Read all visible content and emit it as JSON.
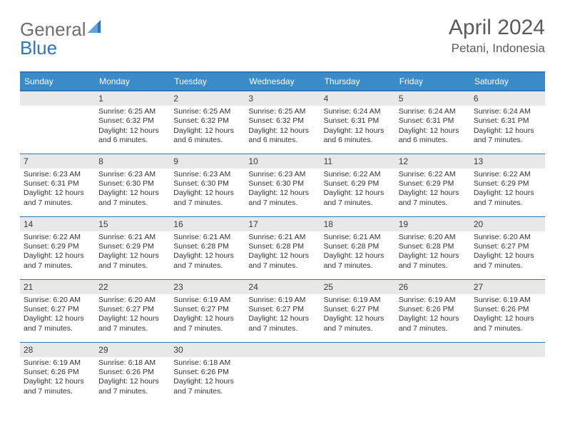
{
  "brand": {
    "part1": "General",
    "part2": "Blue"
  },
  "title": "April 2024",
  "location": "Petani, Indonesia",
  "colors": {
    "header_bg": "#3b8bc9",
    "header_border": "#2d77b8",
    "daynum_bg": "#e8e8e8",
    "text": "#333333",
    "brand_gray": "#6e6e6e",
    "brand_blue": "#2d77b8"
  },
  "day_labels": [
    "Sunday",
    "Monday",
    "Tuesday",
    "Wednesday",
    "Thursday",
    "Friday",
    "Saturday"
  ],
  "weeks": [
    [
      null,
      {
        "n": "1",
        "sr": "Sunrise: 6:25 AM",
        "ss": "Sunset: 6:32 PM",
        "d1": "Daylight: 12 hours",
        "d2": "and 6 minutes."
      },
      {
        "n": "2",
        "sr": "Sunrise: 6:25 AM",
        "ss": "Sunset: 6:32 PM",
        "d1": "Daylight: 12 hours",
        "d2": "and 6 minutes."
      },
      {
        "n": "3",
        "sr": "Sunrise: 6:25 AM",
        "ss": "Sunset: 6:32 PM",
        "d1": "Daylight: 12 hours",
        "d2": "and 6 minutes."
      },
      {
        "n": "4",
        "sr": "Sunrise: 6:24 AM",
        "ss": "Sunset: 6:31 PM",
        "d1": "Daylight: 12 hours",
        "d2": "and 6 minutes."
      },
      {
        "n": "5",
        "sr": "Sunrise: 6:24 AM",
        "ss": "Sunset: 6:31 PM",
        "d1": "Daylight: 12 hours",
        "d2": "and 6 minutes."
      },
      {
        "n": "6",
        "sr": "Sunrise: 6:24 AM",
        "ss": "Sunset: 6:31 PM",
        "d1": "Daylight: 12 hours",
        "d2": "and 7 minutes."
      }
    ],
    [
      {
        "n": "7",
        "sr": "Sunrise: 6:23 AM",
        "ss": "Sunset: 6:31 PM",
        "d1": "Daylight: 12 hours",
        "d2": "and 7 minutes."
      },
      {
        "n": "8",
        "sr": "Sunrise: 6:23 AM",
        "ss": "Sunset: 6:30 PM",
        "d1": "Daylight: 12 hours",
        "d2": "and 7 minutes."
      },
      {
        "n": "9",
        "sr": "Sunrise: 6:23 AM",
        "ss": "Sunset: 6:30 PM",
        "d1": "Daylight: 12 hours",
        "d2": "and 7 minutes."
      },
      {
        "n": "10",
        "sr": "Sunrise: 6:23 AM",
        "ss": "Sunset: 6:30 PM",
        "d1": "Daylight: 12 hours",
        "d2": "and 7 minutes."
      },
      {
        "n": "11",
        "sr": "Sunrise: 6:22 AM",
        "ss": "Sunset: 6:29 PM",
        "d1": "Daylight: 12 hours",
        "d2": "and 7 minutes."
      },
      {
        "n": "12",
        "sr": "Sunrise: 6:22 AM",
        "ss": "Sunset: 6:29 PM",
        "d1": "Daylight: 12 hours",
        "d2": "and 7 minutes."
      },
      {
        "n": "13",
        "sr": "Sunrise: 6:22 AM",
        "ss": "Sunset: 6:29 PM",
        "d1": "Daylight: 12 hours",
        "d2": "and 7 minutes."
      }
    ],
    [
      {
        "n": "14",
        "sr": "Sunrise: 6:22 AM",
        "ss": "Sunset: 6:29 PM",
        "d1": "Daylight: 12 hours",
        "d2": "and 7 minutes."
      },
      {
        "n": "15",
        "sr": "Sunrise: 6:21 AM",
        "ss": "Sunset: 6:29 PM",
        "d1": "Daylight: 12 hours",
        "d2": "and 7 minutes."
      },
      {
        "n": "16",
        "sr": "Sunrise: 6:21 AM",
        "ss": "Sunset: 6:28 PM",
        "d1": "Daylight: 12 hours",
        "d2": "and 7 minutes."
      },
      {
        "n": "17",
        "sr": "Sunrise: 6:21 AM",
        "ss": "Sunset: 6:28 PM",
        "d1": "Daylight: 12 hours",
        "d2": "and 7 minutes."
      },
      {
        "n": "18",
        "sr": "Sunrise: 6:21 AM",
        "ss": "Sunset: 6:28 PM",
        "d1": "Daylight: 12 hours",
        "d2": "and 7 minutes."
      },
      {
        "n": "19",
        "sr": "Sunrise: 6:20 AM",
        "ss": "Sunset: 6:28 PM",
        "d1": "Daylight: 12 hours",
        "d2": "and 7 minutes."
      },
      {
        "n": "20",
        "sr": "Sunrise: 6:20 AM",
        "ss": "Sunset: 6:27 PM",
        "d1": "Daylight: 12 hours",
        "d2": "and 7 minutes."
      }
    ],
    [
      {
        "n": "21",
        "sr": "Sunrise: 6:20 AM",
        "ss": "Sunset: 6:27 PM",
        "d1": "Daylight: 12 hours",
        "d2": "and 7 minutes."
      },
      {
        "n": "22",
        "sr": "Sunrise: 6:20 AM",
        "ss": "Sunset: 6:27 PM",
        "d1": "Daylight: 12 hours",
        "d2": "and 7 minutes."
      },
      {
        "n": "23",
        "sr": "Sunrise: 6:19 AM",
        "ss": "Sunset: 6:27 PM",
        "d1": "Daylight: 12 hours",
        "d2": "and 7 minutes."
      },
      {
        "n": "24",
        "sr": "Sunrise: 6:19 AM",
        "ss": "Sunset: 6:27 PM",
        "d1": "Daylight: 12 hours",
        "d2": "and 7 minutes."
      },
      {
        "n": "25",
        "sr": "Sunrise: 6:19 AM",
        "ss": "Sunset: 6:27 PM",
        "d1": "Daylight: 12 hours",
        "d2": "and 7 minutes."
      },
      {
        "n": "26",
        "sr": "Sunrise: 6:19 AM",
        "ss": "Sunset: 6:26 PM",
        "d1": "Daylight: 12 hours",
        "d2": "and 7 minutes."
      },
      {
        "n": "27",
        "sr": "Sunrise: 6:19 AM",
        "ss": "Sunset: 6:26 PM",
        "d1": "Daylight: 12 hours",
        "d2": "and 7 minutes."
      }
    ],
    [
      {
        "n": "28",
        "sr": "Sunrise: 6:19 AM",
        "ss": "Sunset: 6:26 PM",
        "d1": "Daylight: 12 hours",
        "d2": "and 7 minutes."
      },
      {
        "n": "29",
        "sr": "Sunrise: 6:18 AM",
        "ss": "Sunset: 6:26 PM",
        "d1": "Daylight: 12 hours",
        "d2": "and 7 minutes."
      },
      {
        "n": "30",
        "sr": "Sunrise: 6:18 AM",
        "ss": "Sunset: 6:26 PM",
        "d1": "Daylight: 12 hours",
        "d2": "and 7 minutes."
      },
      null,
      null,
      null,
      null
    ]
  ]
}
